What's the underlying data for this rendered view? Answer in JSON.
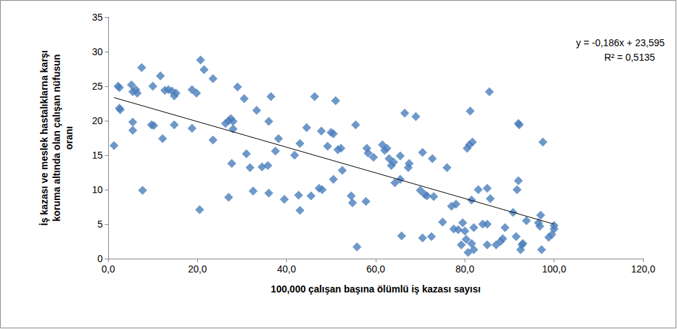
{
  "chart_data": {
    "type": "scatter",
    "xlabel": "100,000 çalışan başına ölümlü iş kazası sayısı",
    "ylabel": "İş kazası ve meslek hastalıklarna karşı\nkoruma altında olan çalışan nüfusun\noranı",
    "annotations": [
      "y = -0,186x + 23,595",
      "R² = 0,5135"
    ],
    "color": "#4a7ebb",
    "marker": "diamond",
    "grid": false,
    "xlim": [
      0,
      120
    ],
    "xticks": [
      {
        "value": 0,
        "label": "0,0"
      },
      {
        "value": 20,
        "label": "20,0"
      },
      {
        "value": 40,
        "label": "40,0"
      },
      {
        "value": 60,
        "label": "60,0"
      },
      {
        "value": 80,
        "label": "80,0"
      },
      {
        "value": 100,
        "label": "100,0"
      },
      {
        "value": 120,
        "label": "120,0"
      }
    ],
    "ylim": [
      0,
      35
    ],
    "yticks": [
      0,
      5,
      10,
      15,
      20,
      25,
      30,
      35
    ],
    "x": [
      1.3,
      2.2,
      2.5,
      2.5,
      2.7,
      5.2,
      5.5,
      5.5,
      5.5,
      6.2,
      6.5,
      7.5,
      7.7,
      9.7,
      10,
      10.2,
      11.7,
      12.2,
      12.7,
      13.5,
      14.3,
      14.8,
      14.8,
      15.2,
      18.8,
      18.8,
      19.8,
      20.5,
      20.7,
      21.5,
      23.5,
      23.5,
      26.3,
      27,
      27,
      27.5,
      27.7,
      28,
      28,
      29,
      30.5,
      31,
      31.8,
      32.5,
      33.3,
      34.5,
      35.8,
      36,
      36,
      36.5,
      37.5,
      38.2,
      39.5,
      41.8,
      42.7,
      43,
      43,
      44.5,
      45.5,
      46.3,
      47.3,
      47.8,
      48,
      49.2,
      50,
      50.5,
      50.5,
      51,
      51.5,
      52.2,
      52.5,
      54.5,
      54.8,
      55.5,
      55.8,
      57.8,
      58,
      58.3,
      59.5,
      61.5,
      62,
      62.5,
      63,
      63.5,
      64,
      64.3,
      65.5,
      65.5,
      65.8,
      66.5,
      67.3,
      67.5,
      69,
      70,
      70.5,
      70.5,
      71,
      71.5,
      72.5,
      72.7,
      73,
      75,
      76,
      77,
      77.5,
      78,
      78.5,
      79.2,
      79.5,
      80,
      80.3,
      80.5,
      80.7,
      81,
      81.2,
      81.5,
      81.5,
      81.7,
      82,
      82,
      83,
      84,
      85,
      85,
      85,
      85.5,
      85.7,
      87,
      88,
      88.5,
      89,
      90.8,
      91.5,
      91.7,
      92,
      92,
      92.2,
      92.5,
      92.8,
      93,
      93.8,
      96.5,
      96.8,
      97,
      97.2,
      97.5,
      98.8,
      99.5,
      100,
      100
    ],
    "values": [
      16.4,
      25,
      24.8,
      21.8,
      21.6,
      25.2,
      24.2,
      19.8,
      18.6,
      24.5,
      24,
      27.7,
      9.9,
      19.4,
      25,
      19.3,
      26.5,
      17.4,
      24.4,
      24.5,
      24.3,
      23.6,
      19.4,
      24,
      24.5,
      18.9,
      24,
      7.1,
      28.8,
      27.4,
      26.1,
      17.2,
      19.6,
      8.9,
      20,
      20.3,
      13.8,
      19.9,
      18.8,
      24.9,
      23.2,
      15.2,
      13.2,
      9.8,
      21.5,
      13.3,
      13.5,
      19.9,
      9.5,
      23.5,
      15.6,
      17.4,
      8.6,
      15,
      9.2,
      16.7,
      7,
      19,
      9.1,
      23.5,
      10.2,
      18.5,
      10,
      16.3,
      18.3,
      18.1,
      11.5,
      22.9,
      15.8,
      16,
      12.8,
      9.1,
      8.1,
      19.4,
      1.7,
      8.3,
      16,
      15.3,
      14.7,
      16.5,
      15.7,
      16,
      14.5,
      13.5,
      14,
      11,
      14.9,
      11.5,
      3.3,
      21.1,
      13.2,
      13.8,
      20.6,
      9.9,
      15.4,
      3,
      9.3,
      9.1,
      3.2,
      14.5,
      9,
      5.3,
      13.2,
      7.6,
      4.3,
      7.9,
      4.2,
      2,
      5.2,
      4,
      2.8,
      16,
      0.9,
      16.5,
      21.4,
      2.2,
      8.5,
      16.9,
      4.5,
      1.3,
      10,
      5,
      10.2,
      5,
      2,
      24.2,
      8.7,
      2,
      2.5,
      2.9,
      4.5,
      6.7,
      3.2,
      10,
      19.6,
      11.3,
      19.4,
      1.3,
      2,
      2.2,
      5.5,
      5.2,
      4.7,
      6.3,
      1.3,
      16.9,
      3.1,
      3.5,
      4.8,
      4.3
    ],
    "trendline": {
      "x": [
        1.3,
        100
      ],
      "values": [
        23.35,
        5.0
      ],
      "color": "#000000",
      "line_style": "solid"
    }
  }
}
